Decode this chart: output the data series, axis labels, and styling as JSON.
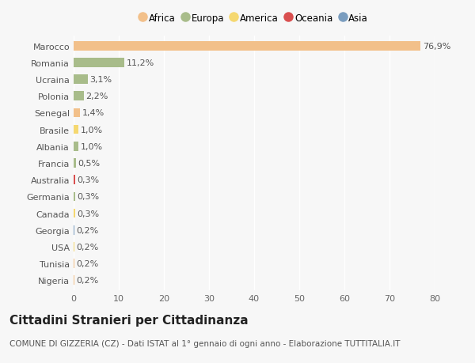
{
  "categories": [
    "Marocco",
    "Romania",
    "Ucraina",
    "Polonia",
    "Senegal",
    "Brasile",
    "Albania",
    "Francia",
    "Australia",
    "Germania",
    "Canada",
    "Georgia",
    "USA",
    "Tunisia",
    "Nigeria"
  ],
  "values": [
    76.9,
    11.2,
    3.1,
    2.2,
    1.4,
    1.0,
    1.0,
    0.5,
    0.3,
    0.3,
    0.3,
    0.2,
    0.2,
    0.2,
    0.2
  ],
  "labels": [
    "76,9%",
    "11,2%",
    "3,1%",
    "2,2%",
    "1,4%",
    "1,0%",
    "1,0%",
    "0,5%",
    "0,3%",
    "0,3%",
    "0,3%",
    "0,2%",
    "0,2%",
    "0,2%",
    "0,2%"
  ],
  "colors": [
    "#F2C08A",
    "#A8BC8A",
    "#A8BC8A",
    "#A8BC8A",
    "#F2C08A",
    "#F5D870",
    "#A8BC8A",
    "#A8BC8A",
    "#D94F4F",
    "#A8BC8A",
    "#F5D870",
    "#7A9DBF",
    "#F5D870",
    "#F2C08A",
    "#F2C08A"
  ],
  "continent_legend": [
    "Africa",
    "Europa",
    "America",
    "Oceania",
    "Asia"
  ],
  "continent_colors": [
    "#F2C08A",
    "#A8BC8A",
    "#F5D870",
    "#D94F4F",
    "#7A9DBF"
  ],
  "xlim": [
    0,
    80
  ],
  "xticks": [
    0,
    10,
    20,
    30,
    40,
    50,
    60,
    70,
    80
  ],
  "title": "Cittadini Stranieri per Cittadinanza",
  "subtitle": "COMUNE DI GIZZERIA (CZ) - Dati ISTAT al 1° gennaio di ogni anno - Elaborazione TUTTITALIA.IT",
  "background_color": "#F7F7F7",
  "bar_height": 0.55,
  "grid_color": "#FFFFFF",
  "title_fontsize": 11,
  "subtitle_fontsize": 7.5,
  "label_fontsize": 8,
  "tick_fontsize": 8
}
